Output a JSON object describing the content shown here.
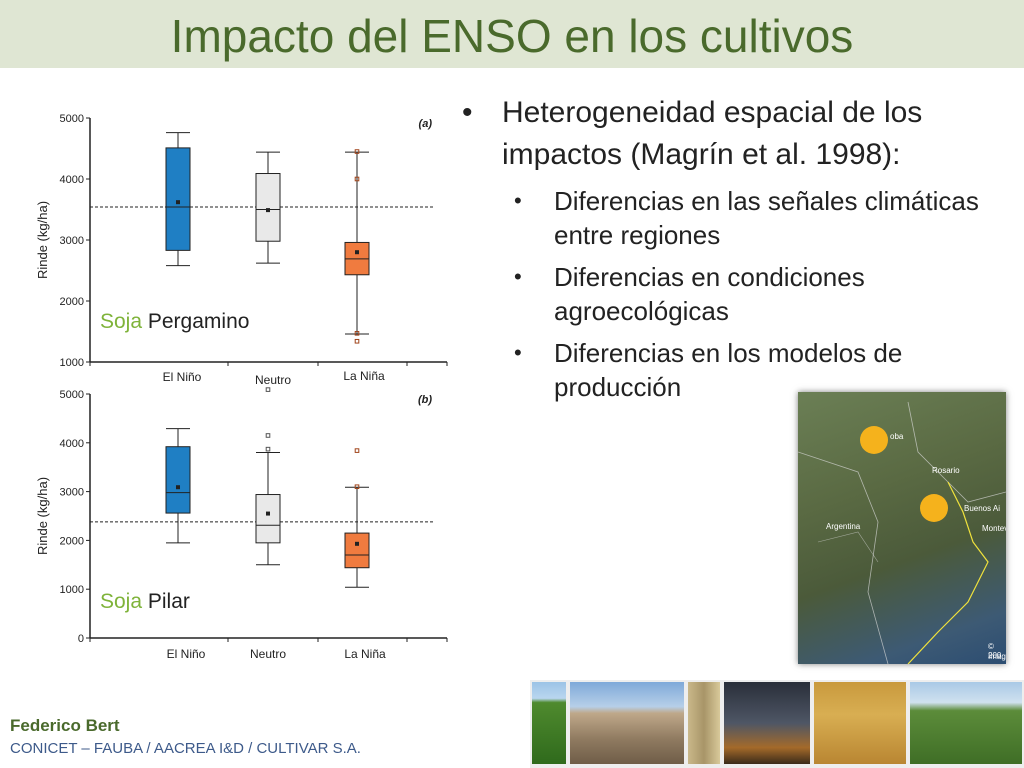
{
  "slide": {
    "title": "Impacto del ENSO en los cultivos",
    "bullet_main": "Heterogeneidad espacial de los impactos (Magrín et al. 1998):",
    "sub_bullets": [
      "Diferencias en las señales climáticas entre regiones",
      "Diferencias en condiciones agroecológicas",
      "Diferencias en los modelos de producción"
    ],
    "bullet_symbol": "•",
    "footer_name": "Federico Bert",
    "footer_org": "CONICET – FAUBA / AACREA I&D / CULTIVAR S.A."
  },
  "map": {
    "labels": [
      "Rosario",
      "Buenos Ai",
      "Montev",
      "Argentina",
      "oba",
      "© 200",
      "Imag"
    ]
  },
  "photos": [
    "soybean-field-photo",
    "drought-cow-photo",
    "wheat-ears-photo",
    "storm-lightning-photo",
    "wheat-field-photo",
    "farmers-field-photo"
  ],
  "chart_data": [
    {
      "type": "boxplot",
      "panel": "(a)",
      "label_crop": "Soja",
      "label_site": "Pergamino",
      "ylabel": "Rinde (kg/ha)",
      "ylim": [
        1000,
        5000
      ],
      "yticks": [
        "5000",
        "4000",
        "3000",
        "2000",
        "1000"
      ],
      "categories": [
        "El Niño",
        "Neutro",
        "La Niña"
      ],
      "colors": [
        "#1f7fc4",
        "#e9e9e9",
        "#f07b3f"
      ],
      "reference_line": 3540,
      "boxes": [
        {
          "whisker_low": 2580,
          "q1": 2830,
          "median": 3540,
          "q3": 4510,
          "whisker_high": 4760,
          "mean": 3620,
          "outliers": []
        },
        {
          "whisker_low": 2620,
          "q1": 2980,
          "median": 3500,
          "q3": 4090,
          "whisker_high": 4440,
          "mean": 3490,
          "outliers": []
        },
        {
          "whisker_low": 1460,
          "q1": 2430,
          "median": 2690,
          "q3": 2960,
          "whisker_high": 4440,
          "mean": 2800,
          "outliers": [
            1340,
            1470,
            4000,
            4450
          ]
        }
      ]
    },
    {
      "type": "boxplot",
      "panel": "(b)",
      "label_crop": "Soja",
      "label_site": "Pilar",
      "ylabel": "Rinde (kg/ha)",
      "ylim": [
        0,
        5000
      ],
      "yticks": [
        "5000",
        "4000",
        "3000",
        "2000",
        "1000",
        "0"
      ],
      "categories": [
        "El Niño",
        "Neutro",
        "La Niña"
      ],
      "colors": [
        "#1f7fc4",
        "#e9e9e9",
        "#f07b3f"
      ],
      "reference_line": 2380,
      "boxes": [
        {
          "whisker_low": 1950,
          "q1": 2560,
          "median": 2980,
          "q3": 3920,
          "whisker_high": 4290,
          "mean": 3090,
          "outliers": []
        },
        {
          "whisker_low": 1500,
          "q1": 1950,
          "median": 2310,
          "q3": 2940,
          "whisker_high": 3800,
          "mean": 2550,
          "outliers": [
            3870,
            4150,
            5090
          ]
        },
        {
          "whisker_low": 1040,
          "q1": 1440,
          "median": 1700,
          "q3": 2150,
          "whisker_high": 3090,
          "mean": 1930,
          "outliers": [
            3100,
            3840
          ]
        }
      ]
    }
  ]
}
